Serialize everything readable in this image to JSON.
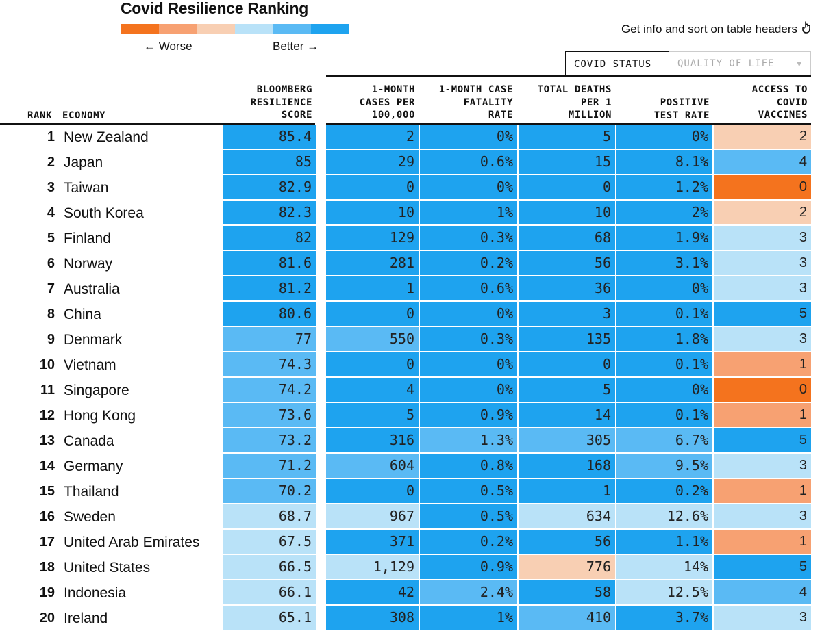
{
  "title": "Covid Resilience Ranking",
  "legend": {
    "worse_label": "← Worse",
    "better_label": "Better →",
    "colors": [
      "#f4731e",
      "#f7a172",
      "#f8cfb3",
      "#b9e2f8",
      "#5abaf4",
      "#1ea3ef"
    ]
  },
  "hint": {
    "text": "Get info and sort on table headers",
    "icon": "pointer-hand-icon"
  },
  "tabs": [
    {
      "label": "COVID STATUS",
      "active": true
    },
    {
      "label": "QUALITY OF LIFE",
      "active": false
    }
  ],
  "columns": {
    "rank": "RANK",
    "economy": "ECONOMY",
    "score": "BLOOMBERG\nRESILIENCE\nSCORE",
    "cases": "1-MONTH\nCASES PER\n100,000",
    "cfr": "1-MONTH CASE\nFATALITY\nRATE",
    "deaths": "TOTAL DEATHS\nPER 1\nMILLION",
    "ptr": "POSITIVE\nTEST RATE",
    "vax": "ACCESS TO\nCOVID\nVACCINES"
  },
  "colors": {
    "blue_dark": "#1ea3ef",
    "blue_mid": "#5abaf4",
    "blue_light": "#b9e2f8",
    "orange_light": "#f8cfb3",
    "orange_mid": "#f7a172",
    "orange_dark": "#f4731e"
  },
  "rows": [
    {
      "rank": "1",
      "economy": "New Zealand",
      "score": "85.4",
      "cases": "2",
      "cfr": "0%",
      "deaths": "5",
      "ptr": "0%",
      "vax": "2",
      "shade": {
        "score": "blue_dark",
        "cases": "blue_dark",
        "cfr": "blue_dark",
        "deaths": "blue_dark",
        "ptr": "blue_dark",
        "vax": "orange_light"
      }
    },
    {
      "rank": "2",
      "economy": "Japan",
      "score": "85",
      "cases": "29",
      "cfr": "0.6%",
      "deaths": "15",
      "ptr": "8.1%",
      "vax": "4",
      "shade": {
        "score": "blue_dark",
        "cases": "blue_dark",
        "cfr": "blue_dark",
        "deaths": "blue_dark",
        "ptr": "blue_dark",
        "vax": "blue_mid"
      }
    },
    {
      "rank": "3",
      "economy": "Taiwan",
      "score": "82.9",
      "cases": "0",
      "cfr": "0%",
      "deaths": "0",
      "ptr": "1.2%",
      "vax": "0",
      "shade": {
        "score": "blue_dark",
        "cases": "blue_dark",
        "cfr": "blue_dark",
        "deaths": "blue_dark",
        "ptr": "blue_dark",
        "vax": "orange_dark"
      }
    },
    {
      "rank": "4",
      "economy": "South Korea",
      "score": "82.3",
      "cases": "10",
      "cfr": "1%",
      "deaths": "10",
      "ptr": "2%",
      "vax": "2",
      "shade": {
        "score": "blue_dark",
        "cases": "blue_dark",
        "cfr": "blue_dark",
        "deaths": "blue_dark",
        "ptr": "blue_dark",
        "vax": "orange_light"
      }
    },
    {
      "rank": "5",
      "economy": "Finland",
      "score": "82",
      "cases": "129",
      "cfr": "0.3%",
      "deaths": "68",
      "ptr": "1.9%",
      "vax": "3",
      "shade": {
        "score": "blue_dark",
        "cases": "blue_dark",
        "cfr": "blue_dark",
        "deaths": "blue_dark",
        "ptr": "blue_dark",
        "vax": "blue_light"
      }
    },
    {
      "rank": "6",
      "economy": "Norway",
      "score": "81.6",
      "cases": "281",
      "cfr": "0.2%",
      "deaths": "56",
      "ptr": "3.1%",
      "vax": "3",
      "shade": {
        "score": "blue_dark",
        "cases": "blue_dark",
        "cfr": "blue_dark",
        "deaths": "blue_dark",
        "ptr": "blue_dark",
        "vax": "blue_light"
      }
    },
    {
      "rank": "7",
      "economy": "Australia",
      "score": "81.2",
      "cases": "1",
      "cfr": "0.6%",
      "deaths": "36",
      "ptr": "0%",
      "vax": "3",
      "shade": {
        "score": "blue_dark",
        "cases": "blue_dark",
        "cfr": "blue_dark",
        "deaths": "blue_dark",
        "ptr": "blue_dark",
        "vax": "blue_light"
      }
    },
    {
      "rank": "8",
      "economy": "China",
      "score": "80.6",
      "cases": "0",
      "cfr": "0%",
      "deaths": "3",
      "ptr": "0.1%",
      "vax": "5",
      "shade": {
        "score": "blue_dark",
        "cases": "blue_dark",
        "cfr": "blue_dark",
        "deaths": "blue_dark",
        "ptr": "blue_dark",
        "vax": "blue_dark"
      }
    },
    {
      "rank": "9",
      "economy": "Denmark",
      "score": "77",
      "cases": "550",
      "cfr": "0.3%",
      "deaths": "135",
      "ptr": "1.8%",
      "vax": "3",
      "shade": {
        "score": "blue_mid",
        "cases": "blue_mid",
        "cfr": "blue_dark",
        "deaths": "blue_dark",
        "ptr": "blue_dark",
        "vax": "blue_light"
      }
    },
    {
      "rank": "10",
      "economy": "Vietnam",
      "score": "74.3",
      "cases": "0",
      "cfr": "0%",
      "deaths": "0",
      "ptr": "0.1%",
      "vax": "1",
      "shade": {
        "score": "blue_mid",
        "cases": "blue_dark",
        "cfr": "blue_dark",
        "deaths": "blue_dark",
        "ptr": "blue_dark",
        "vax": "orange_mid"
      }
    },
    {
      "rank": "11",
      "economy": "Singapore",
      "score": "74.2",
      "cases": "4",
      "cfr": "0%",
      "deaths": "5",
      "ptr": "0%",
      "vax": "0",
      "shade": {
        "score": "blue_mid",
        "cases": "blue_dark",
        "cfr": "blue_dark",
        "deaths": "blue_dark",
        "ptr": "blue_dark",
        "vax": "orange_dark"
      }
    },
    {
      "rank": "12",
      "economy": "Hong Kong",
      "score": "73.6",
      "cases": "5",
      "cfr": "0.9%",
      "deaths": "14",
      "ptr": "0.1%",
      "vax": "1",
      "shade": {
        "score": "blue_mid",
        "cases": "blue_dark",
        "cfr": "blue_dark",
        "deaths": "blue_dark",
        "ptr": "blue_dark",
        "vax": "orange_mid"
      }
    },
    {
      "rank": "13",
      "economy": "Canada",
      "score": "73.2",
      "cases": "316",
      "cfr": "1.3%",
      "deaths": "305",
      "ptr": "6.7%",
      "vax": "5",
      "shade": {
        "score": "blue_mid",
        "cases": "blue_dark",
        "cfr": "blue_mid",
        "deaths": "blue_mid",
        "ptr": "blue_mid",
        "vax": "blue_dark"
      }
    },
    {
      "rank": "14",
      "economy": "Germany",
      "score": "71.2",
      "cases": "604",
      "cfr": "0.8%",
      "deaths": "168",
      "ptr": "9.5%",
      "vax": "3",
      "shade": {
        "score": "blue_mid",
        "cases": "blue_mid",
        "cfr": "blue_dark",
        "deaths": "blue_dark",
        "ptr": "blue_mid",
        "vax": "blue_light"
      }
    },
    {
      "rank": "15",
      "economy": "Thailand",
      "score": "70.2",
      "cases": "0",
      "cfr": "0.5%",
      "deaths": "1",
      "ptr": "0.2%",
      "vax": "1",
      "shade": {
        "score": "blue_mid",
        "cases": "blue_dark",
        "cfr": "blue_dark",
        "deaths": "blue_dark",
        "ptr": "blue_dark",
        "vax": "orange_mid"
      }
    },
    {
      "rank": "16",
      "economy": "Sweden",
      "score": "68.7",
      "cases": "967",
      "cfr": "0.5%",
      "deaths": "634",
      "ptr": "12.6%",
      "vax": "3",
      "shade": {
        "score": "blue_light",
        "cases": "blue_light",
        "cfr": "blue_dark",
        "deaths": "blue_light",
        "ptr": "blue_light",
        "vax": "blue_light"
      }
    },
    {
      "rank": "17",
      "economy": "United Arab Emirates",
      "score": "67.5",
      "cases": "371",
      "cfr": "0.2%",
      "deaths": "56",
      "ptr": "1.1%",
      "vax": "1",
      "shade": {
        "score": "blue_light",
        "cases": "blue_dark",
        "cfr": "blue_dark",
        "deaths": "blue_dark",
        "ptr": "blue_dark",
        "vax": "orange_mid"
      }
    },
    {
      "rank": "18",
      "economy": "United States",
      "score": "66.5",
      "cases": "1,129",
      "cfr": "0.9%",
      "deaths": "776",
      "ptr": "14%",
      "vax": "5",
      "shade": {
        "score": "blue_light",
        "cases": "blue_light",
        "cfr": "blue_dark",
        "deaths": "orange_light",
        "ptr": "blue_light",
        "vax": "blue_dark"
      }
    },
    {
      "rank": "19",
      "economy": "Indonesia",
      "score": "66.1",
      "cases": "42",
      "cfr": "2.4%",
      "deaths": "58",
      "ptr": "12.5%",
      "vax": "4",
      "shade": {
        "score": "blue_light",
        "cases": "blue_dark",
        "cfr": "blue_mid",
        "deaths": "blue_dark",
        "ptr": "blue_light",
        "vax": "blue_mid"
      }
    },
    {
      "rank": "20",
      "economy": "Ireland",
      "score": "65.1",
      "cases": "308",
      "cfr": "1%",
      "deaths": "410",
      "ptr": "3.7%",
      "vax": "3",
      "shade": {
        "score": "blue_light",
        "cases": "blue_dark",
        "cfr": "blue_dark",
        "deaths": "blue_mid",
        "ptr": "blue_dark",
        "vax": "blue_light"
      }
    }
  ]
}
